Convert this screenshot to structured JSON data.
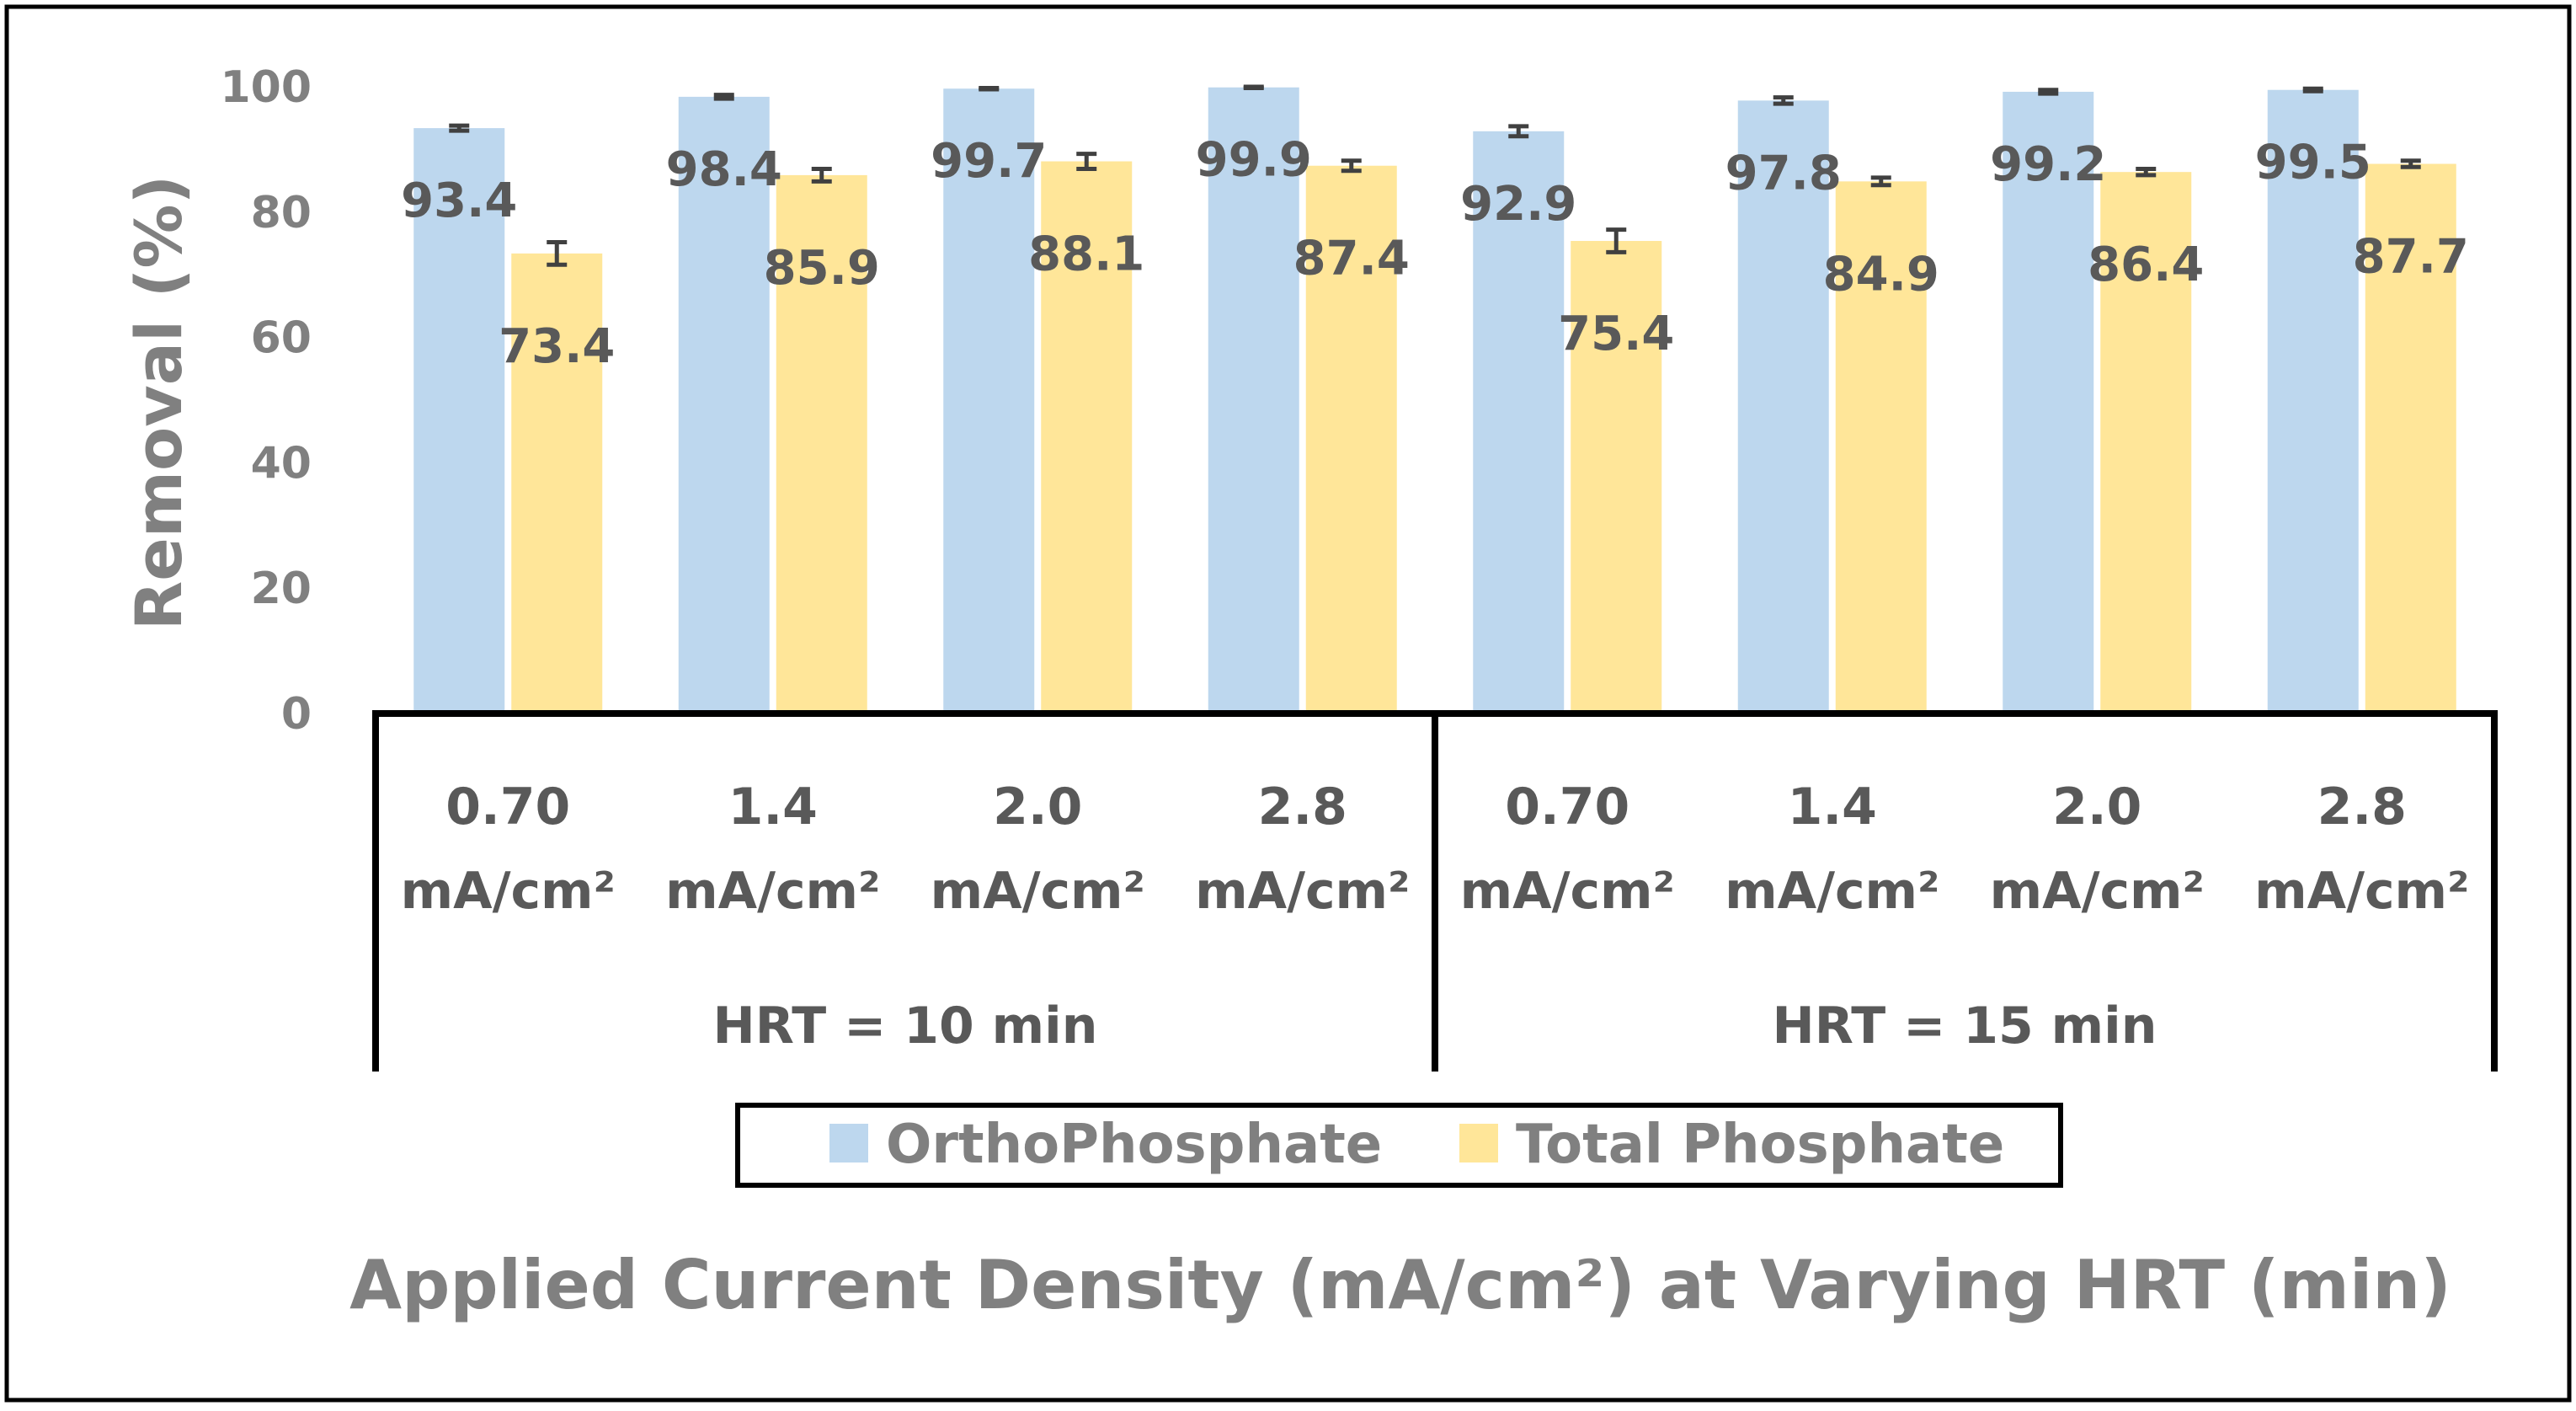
{
  "chart_data": {
    "type": "bar",
    "title": "",
    "xlabel": "Applied Current Density (mA/cm²) at Varying HRT (min)",
    "ylabel": "Removal (%)",
    "ylim": [
      0,
      100
    ],
    "yticks": [
      0,
      20,
      40,
      60,
      80,
      100
    ],
    "grid": false,
    "legend_position": "bottom",
    "colors": {
      "orthophosphate": "#BDD7EE",
      "total_phosphate": "#FFE699",
      "text": "#595959",
      "axis_text": "#808080",
      "axis_line": "#000000"
    },
    "groups": [
      {
        "label": "HRT = 10 min",
        "categories": [
          {
            "value": "0.70",
            "unit": "mA/cm²"
          },
          {
            "value": "1.4",
            "unit": "mA/cm²"
          },
          {
            "value": "2.0",
            "unit": "mA/cm²"
          },
          {
            "value": "2.8",
            "unit": "mA/cm²"
          }
        ]
      },
      {
        "label": "HRT = 15 min",
        "categories": [
          {
            "value": "0.70",
            "unit": "mA/cm²"
          },
          {
            "value": "1.4",
            "unit": "mA/cm²"
          },
          {
            "value": "2.0",
            "unit": "mA/cm²"
          },
          {
            "value": "2.8",
            "unit": "mA/cm²"
          }
        ]
      }
    ],
    "series": [
      {
        "name": "OrthoPhosphate",
        "values": [
          93.4,
          98.4,
          99.7,
          99.9,
          92.9,
          97.8,
          99.2,
          99.5
        ],
        "labels": [
          "93.4",
          "98.4",
          "99.7",
          "99.9",
          "92.9",
          "97.8",
          "99.2",
          "99.5"
        ],
        "errors": [
          0.4,
          0.3,
          0.1,
          0.1,
          0.8,
          0.5,
          0.3,
          0.2
        ]
      },
      {
        "name": "Total Phosphate",
        "values": [
          73.4,
          85.9,
          88.1,
          87.4,
          75.4,
          84.9,
          86.4,
          87.7
        ],
        "labels": [
          "73.4",
          "85.9",
          "88.1",
          "87.4",
          "75.4",
          "84.9",
          "86.4",
          "87.7"
        ],
        "errors": [
          1.8,
          1.0,
          1.2,
          0.8,
          1.8,
          0.6,
          0.5,
          0.5
        ]
      }
    ]
  }
}
